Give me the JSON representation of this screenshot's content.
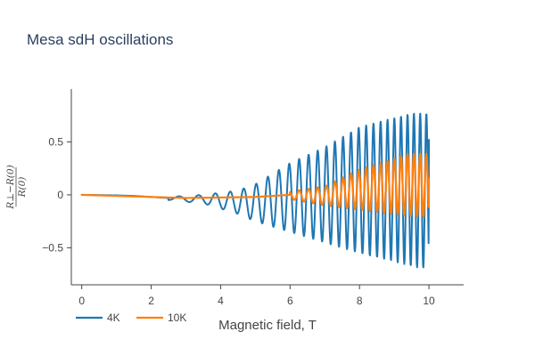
{
  "chart_data": {
    "type": "line",
    "title": "Mesa sdH oscillations",
    "xlabel": "Magnetic field, T",
    "ylabel": {
      "numerator": "R⊥−R(0)",
      "denominator": "R(0)"
    },
    "xlim": [
      -0.3,
      11
    ],
    "ylim": [
      -0.85,
      1.0
    ],
    "xticks": [
      "0",
      "2",
      "4",
      "6",
      "8",
      "10"
    ],
    "yticks": [
      "−0.5",
      "0",
      "0.5"
    ],
    "grid": false,
    "legend_position": "bottom-left",
    "series": [
      {
        "name": "4K",
        "color": "#1f77b4",
        "points": [
          [
            0,
            0.0
          ],
          [
            1.0,
            -0.005
          ],
          [
            1.5,
            -0.01
          ],
          [
            2.0,
            -0.02
          ],
          [
            2.5,
            -0.03
          ],
          [
            3.0,
            -0.035
          ],
          [
            3.5,
            -0.045
          ],
          [
            4.0,
            -0.06
          ],
          [
            4.5,
            -0.07
          ],
          [
            5.0,
            -0.075
          ],
          [
            5.5,
            -0.08
          ],
          [
            6.0,
            -0.09
          ],
          [
            6.5,
            -0.1
          ],
          [
            7.0,
            -0.1
          ],
          [
            7.5,
            -0.08
          ],
          [
            8.0,
            -0.07
          ],
          [
            8.5,
            -0.05
          ],
          [
            9.0,
            0.0
          ],
          [
            9.5,
            0.04
          ],
          [
            10.0,
            0.05
          ]
        ],
        "envelope_upper": [
          [
            2.5,
            -0.02
          ],
          [
            3.5,
            0.0
          ],
          [
            4.5,
            0.04
          ],
          [
            5.0,
            0.1
          ],
          [
            6.0,
            0.3
          ],
          [
            7.0,
            0.45
          ],
          [
            8.0,
            0.64
          ],
          [
            8.8,
            0.71
          ],
          [
            9.5,
            0.77
          ]
        ],
        "envelope_lower": [
          [
            2.5,
            -0.05
          ],
          [
            3.5,
            -0.08
          ],
          [
            4.5,
            -0.18
          ],
          [
            5.0,
            -0.25
          ],
          [
            6.0,
            -0.35
          ],
          [
            7.0,
            -0.45
          ],
          [
            8.0,
            -0.55
          ],
          [
            8.9,
            -0.62
          ],
          [
            9.7,
            -0.69
          ]
        ],
        "end_value": [
          10.0,
          0.52
        ]
      },
      {
        "name": "10K",
        "color": "#ff7f0e",
        "points": [
          [
            0,
            0.0
          ],
          [
            1.0,
            -0.01
          ],
          [
            2.0,
            -0.02
          ],
          [
            3.0,
            -0.03
          ],
          [
            4.0,
            -0.025
          ],
          [
            5.0,
            -0.02
          ],
          [
            6.0,
            0.0
          ],
          [
            7.0,
            0.0
          ],
          [
            8.0,
            0.0
          ],
          [
            8.5,
            0.05
          ],
          [
            9.0,
            0.05
          ],
          [
            9.5,
            0.1
          ],
          [
            10.0,
            0.1
          ]
        ],
        "envelope_upper": [
          [
            6.0,
            0.03
          ],
          [
            7.0,
            0.08
          ],
          [
            8.0,
            0.24
          ],
          [
            8.8,
            0.32
          ],
          [
            9.4,
            0.39
          ]
        ],
        "envelope_lower": [
          [
            6.0,
            -0.04
          ],
          [
            7.0,
            -0.1
          ],
          [
            8.0,
            -0.14
          ],
          [
            8.9,
            -0.18
          ],
          [
            9.8,
            -0.21
          ]
        ],
        "end_value": [
          10.0,
          0.15
        ]
      }
    ]
  }
}
